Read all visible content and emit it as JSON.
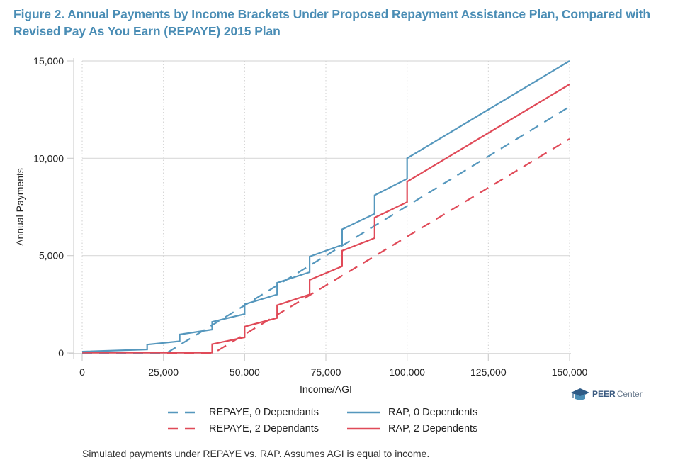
{
  "title": "Figure 2. Annual Payments by Income Brackets Under Proposed Repayment Assistance Plan, Compared with Revised Pay As You Earn (REPAYE) 2015 Plan",
  "caption": "Simulated payments under REPAYE vs. RAP. Assumes AGI is equal to income.",
  "logo": {
    "bold": "PEER",
    "light": "Center",
    "icon": "graduation-cap-icon"
  },
  "colors": {
    "title": "#4a8db5",
    "blue": "#5597bd",
    "red": "#e04a58",
    "grid": "#d9d9d9",
    "axis": "#d0d0d0"
  },
  "chart_data": {
    "type": "line",
    "title": "Figure 2. Annual Payments by Income Brackets Under Proposed Repayment Assistance Plan, Compared with Revised Pay As You Earn (REPAYE) 2015 Plan",
    "xlabel": "Income/AGI",
    "ylabel": "Annual Payments",
    "xlim": [
      0,
      150000
    ],
    "ylim": [
      0,
      15000
    ],
    "x_ticks": [
      0,
      25000,
      50000,
      75000,
      100000,
      125000,
      150000
    ],
    "x_tick_labels": [
      "0",
      "25,000",
      "50,000",
      "75,000",
      "100,000",
      "125,000",
      "150,000"
    ],
    "y_ticks": [
      0,
      5000,
      10000,
      15000
    ],
    "y_tick_labels": [
      "0",
      "5,000",
      "10,000",
      "15,000"
    ],
    "grid": "dotted vertical at x ticks, solid horizontal at y ticks",
    "legend_position": "bottom",
    "series": [
      {
        "name": "REPAYE, 0 Dependants",
        "style": "dashed",
        "color": "#5597bd",
        "points": [
          [
            0,
            0
          ],
          [
            26000,
            0
          ],
          [
            150000,
            12650
          ]
        ]
      },
      {
        "name": "RAP, 0 Dependents",
        "style": "solid",
        "color": "#5597bd",
        "points": [
          [
            0,
            70
          ],
          [
            20000,
            180
          ],
          [
            20000,
            430
          ],
          [
            30000,
            600
          ],
          [
            30000,
            950
          ],
          [
            40000,
            1200
          ],
          [
            40000,
            1600
          ],
          [
            50000,
            2000
          ],
          [
            50000,
            2500
          ],
          [
            60000,
            3000
          ],
          [
            60000,
            3600
          ],
          [
            70000,
            4150
          ],
          [
            70000,
            4950
          ],
          [
            80000,
            5550
          ],
          [
            80000,
            6350
          ],
          [
            90000,
            7150
          ],
          [
            90000,
            8100
          ],
          [
            100000,
            8950
          ],
          [
            100000,
            10000
          ],
          [
            150000,
            15000
          ]
        ]
      },
      {
        "name": "REPAYE, 2 Dependants",
        "style": "dashed",
        "color": "#e04a58",
        "points": [
          [
            0,
            0
          ],
          [
            40500,
            0
          ],
          [
            150000,
            11000
          ]
        ]
      },
      {
        "name": "RAP, 2 Dependents",
        "style": "solid",
        "color": "#e04a58",
        "points": [
          [
            0,
            20
          ],
          [
            40000,
            20
          ],
          [
            40000,
            450
          ],
          [
            50000,
            800
          ],
          [
            50000,
            1350
          ],
          [
            60000,
            1800
          ],
          [
            60000,
            2450
          ],
          [
            70000,
            3000
          ],
          [
            70000,
            3750
          ],
          [
            80000,
            4450
          ],
          [
            80000,
            5250
          ],
          [
            90000,
            5900
          ],
          [
            90000,
            6950
          ],
          [
            100000,
            7750
          ],
          [
            100000,
            8800
          ],
          [
            150000,
            13800
          ]
        ]
      }
    ]
  }
}
